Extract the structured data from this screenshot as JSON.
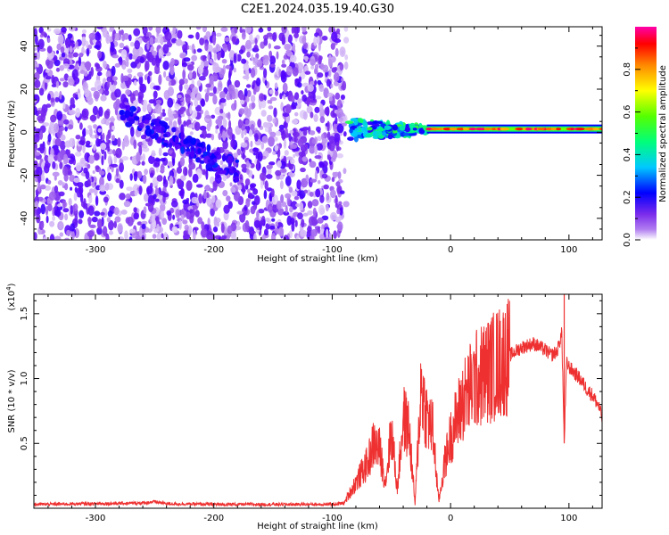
{
  "title": "C2E1.2024.035.19.40.G30",
  "colors": {
    "snr_line": "#ee3030",
    "colormap": [
      "#ffffff",
      "#d9c2f7",
      "#b07cf0",
      "#7b2cec",
      "#5a00ff",
      "#0000ff",
      "#00c8ff",
      "#00ff7a",
      "#55ff00",
      "#ffff00",
      "#ff8800",
      "#ff0000",
      "#ff00aa"
    ]
  },
  "chart_data": [
    {
      "type": "heatmap",
      "xlabel": "Height of straight line (km)",
      "ylabel": "Frequency (Hz)",
      "xlim": [
        -352,
        128
      ],
      "ylim": [
        -50,
        49
      ],
      "x_ticks": [
        -300,
        -200,
        -100,
        0,
        100
      ],
      "x_tick_labels": [
        "-300",
        "-200",
        "-100",
        "0",
        "100"
      ],
      "y_ticks": [
        -40,
        -20,
        0,
        20,
        40
      ],
      "y_tick_labels": [
        "-40",
        "-20",
        "0",
        "20",
        "40"
      ],
      "colorbar": {
        "label": "Normalized spectral amplitude",
        "range": [
          0,
          1
        ],
        "ticks": [
          0.0,
          0.2,
          0.4,
          0.6,
          0.8
        ],
        "tick_labels": [
          "0.0",
          "0.2",
          "0.4",
          "0.6",
          "0.8"
        ]
      },
      "features": [
        {
          "name": "broadband noise",
          "x_range": [
            -352,
            -88
          ],
          "frequency_range": [
            -50,
            49
          ],
          "amplitude": 0.1
        },
        {
          "name": "diagonal trace",
          "x_start": -280,
          "x_end": -180,
          "frequency_start": 10,
          "frequency_end": -18,
          "amplitude": 0.15
        },
        {
          "name": "meteor head return",
          "x_range": [
            -88,
            -20
          ],
          "frequency": 1,
          "amplitude": 0.45
        },
        {
          "name": "carrier line",
          "x_range": [
            -20,
            128
          ],
          "frequency": 1.5,
          "amplitude": 0.75
        }
      ]
    },
    {
      "type": "line",
      "xlabel": "Height of straight line (km)",
      "ylabel": "SNR (10 * v/v)",
      "y_multiplier_label": "(x10",
      "y_multiplier_exp": "4",
      "xlim": [
        -352,
        128
      ],
      "ylim": [
        0,
        16500
      ],
      "x_ticks": [
        -300,
        -200,
        -100,
        0,
        100
      ],
      "x_tick_labels": [
        "-300",
        "-200",
        "-100",
        "0",
        "100"
      ],
      "y_ticks": [
        5000,
        10000,
        15000
      ],
      "y_tick_labels": [
        "0.5",
        "1.0",
        "1.5"
      ],
      "series": [
        {
          "color": "#ee3030",
          "x": [
            -352,
            -300,
            -260,
            -250,
            -240,
            -200,
            -150,
            -100,
            -90,
            -80,
            -70,
            -65,
            -60,
            -55,
            -50,
            -45,
            -40,
            -35,
            -30,
            -25,
            -20,
            -15,
            -10,
            -5,
            0,
            10,
            20,
            30,
            40,
            50,
            60,
            70,
            80,
            85,
            90,
            94,
            96,
            98,
            100,
            110,
            115,
            120,
            125,
            128
          ],
          "y": [
            300,
            350,
            400,
            500,
            350,
            300,
            300,
            300,
            400,
            2000,
            3500,
            5000,
            4500,
            2000,
            6000,
            1500,
            7000,
            6000,
            300,
            9500,
            7000,
            6000,
            500,
            3500,
            5500,
            8200,
            9800,
            10500,
            11200,
            11800,
            12400,
            12700,
            12200,
            11800,
            12100,
            13500,
            5000,
            11200,
            10900,
            9900,
            9200,
            8700,
            7900,
            7000
          ]
        }
      ]
    }
  ]
}
